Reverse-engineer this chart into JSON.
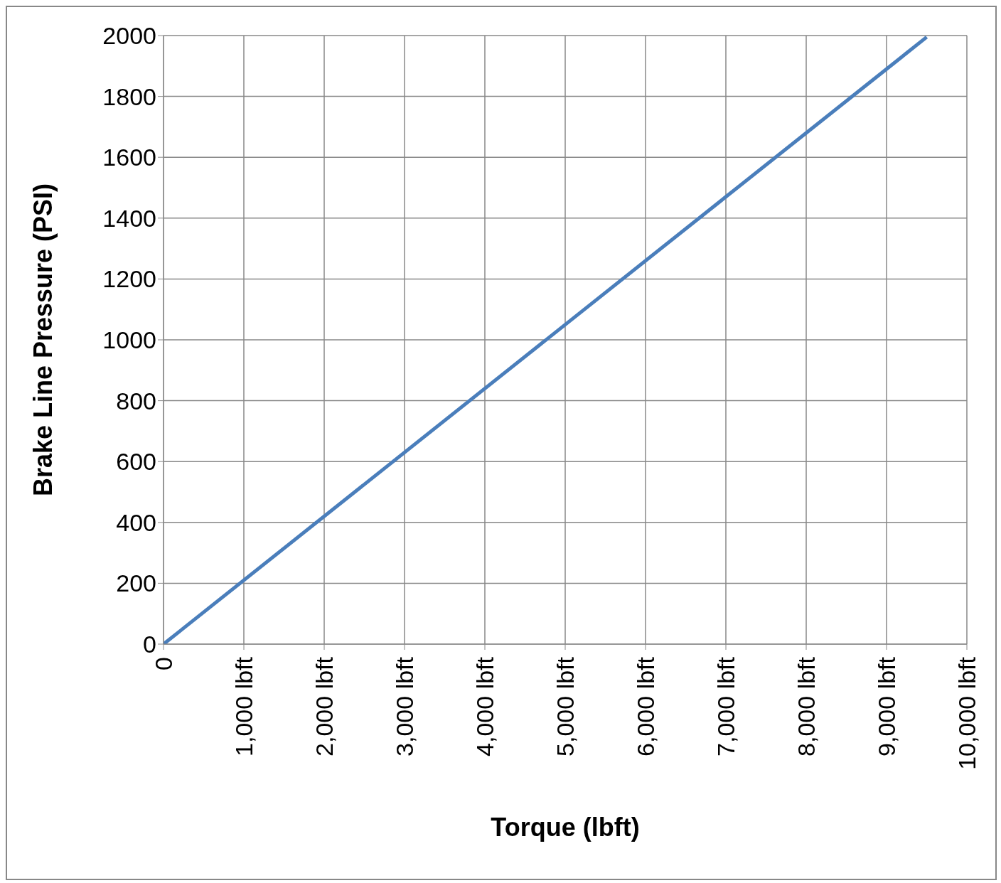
{
  "chart_data": {
    "type": "line",
    "xlabel": "Torque (lbft)",
    "ylabel": "Brake Line Pressure (PSI)",
    "x": [
      0,
      5000,
      9500
    ],
    "series": [
      {
        "color": "#4a7ebb",
        "values": [
          0,
          1050,
          1995
        ]
      }
    ],
    "xlim": [
      0,
      10000
    ],
    "xticks": [
      0,
      {
        "value": 1000,
        "label": "1,000 lbft"
      },
      {
        "value": 2000,
        "label": "2,000 lbft"
      },
      {
        "value": 3000,
        "label": "3,000 lbft"
      },
      {
        "value": 4000,
        "label": "4,000 lbft"
      },
      {
        "value": 5000,
        "label": "5,000 lbft"
      },
      {
        "value": 6000,
        "label": "6,000 lbft"
      },
      {
        "value": 7000,
        "label": "7,000 lbft"
      },
      {
        "value": 8000,
        "label": "8,000 lbft"
      },
      {
        "value": 9000,
        "label": "9,000 lbft"
      },
      {
        "value": 10000,
        "label": "10,000 lbft"
      }
    ],
    "ylim": [
      0,
      2000
    ],
    "yticks": [
      0,
      200,
      400,
      600,
      800,
      1000,
      1200,
      1400,
      1600,
      1800,
      2000
    ],
    "grid": true,
    "legend": false,
    "marker": "none",
    "line_style": "solid"
  }
}
